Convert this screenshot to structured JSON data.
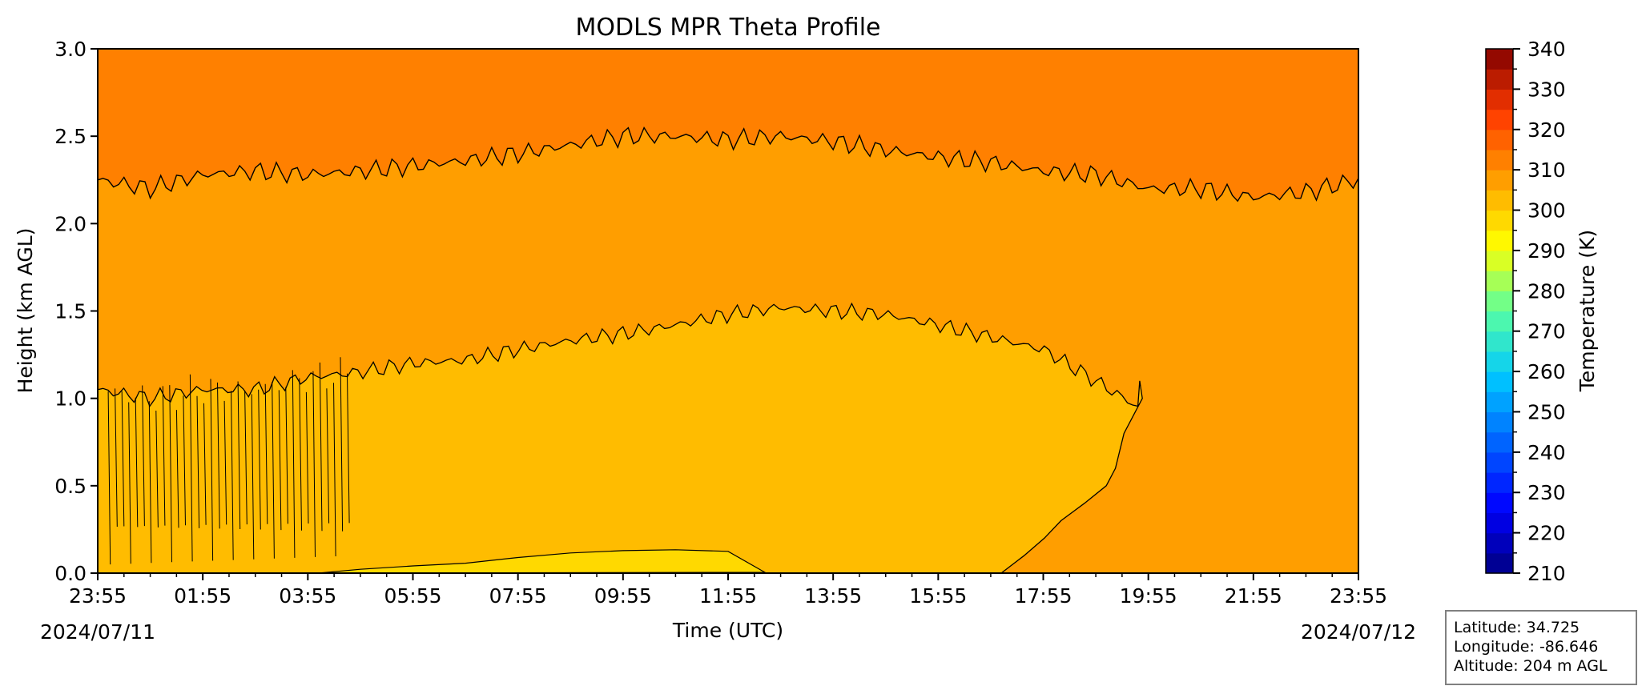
{
  "chart_data": {
    "type": "heatmap",
    "title": "MODLS MPR Theta Profile",
    "xlabel": "Time (UTC)",
    "ylabel": "Height (km AGL)",
    "x_tick_labels": [
      "23:55",
      "01:55",
      "03:55",
      "05:55",
      "07:55",
      "09:55",
      "11:55",
      "13:55",
      "15:55",
      "17:55",
      "19:55",
      "21:55",
      "23:55"
    ],
    "x_range_hours": [
      0,
      24
    ],
    "start_date_label": "2024/07/11",
    "end_date_label": "2024/07/12",
    "y_tick_labels": [
      "0.0",
      "0.5",
      "1.0",
      "1.5",
      "2.0",
      "2.5",
      "3.0"
    ],
    "ylim": [
      0.0,
      3.0
    ],
    "colorbar": {
      "label": "Temperature (K)",
      "range": [
        210,
        340
      ],
      "step": 5,
      "tick_labels": [
        "210",
        "220",
        "230",
        "240",
        "250",
        "260",
        "270",
        "280",
        "290",
        "300",
        "310",
        "320",
        "330",
        "340"
      ]
    },
    "contour_levels_K": [
      295,
      300,
      305,
      310
    ],
    "regions": [
      {
        "level_range_K": [
          310,
          315
        ],
        "description_position": "top"
      },
      {
        "level_range_K": [
          305,
          310
        ],
        "description_position": "middle band"
      },
      {
        "level_range_K": [
          300,
          305
        ],
        "description_position": "daytime dome"
      },
      {
        "level_range_K": [
          295,
          300
        ],
        "description_position": "near surface midday"
      }
    ],
    "boundary_310K_km": {
      "time_hours": [
        0,
        1,
        2,
        3,
        4,
        5,
        6,
        7,
        8,
        9,
        10,
        11,
        12,
        13,
        14,
        15,
        16,
        17,
        18,
        19,
        20,
        21,
        22,
        23,
        24
      ],
      "height_km": [
        2.25,
        2.2,
        2.28,
        2.3,
        2.28,
        2.3,
        2.33,
        2.36,
        2.4,
        2.45,
        2.5,
        2.5,
        2.48,
        2.5,
        2.47,
        2.42,
        2.38,
        2.35,
        2.3,
        2.28,
        2.2,
        2.2,
        2.15,
        2.18,
        2.25
      ]
    },
    "dome_top_305K_km": {
      "time_hours": [
        0,
        1,
        2,
        3,
        4,
        5,
        6,
        7,
        8,
        9,
        10,
        11,
        12,
        13,
        14,
        15,
        16,
        17,
        18,
        19,
        19.8
      ],
      "height_km": [
        1.05,
        1.0,
        1.05,
        1.05,
        1.12,
        1.15,
        1.2,
        1.22,
        1.28,
        1.33,
        1.37,
        1.42,
        1.48,
        1.52,
        1.5,
        1.48,
        1.42,
        1.35,
        1.28,
        1.1,
        0.95
      ]
    },
    "dome_right_edge_305K": {
      "height_km": [
        0.0,
        0.1,
        0.2,
        0.3,
        0.4,
        0.5,
        0.6,
        0.8,
        1.0,
        1.1
      ],
      "time_hours": [
        17.2,
        17.6,
        18.0,
        18.4,
        18.8,
        19.1,
        19.4,
        19.65,
        19.8,
        19.75
      ]
    },
    "surface_dome_300K": {
      "time_hours": [
        4.2,
        5,
        6,
        7,
        8,
        9,
        10,
        11,
        12,
        12.7
      ],
      "height_km": [
        0.0,
        0.02,
        0.04,
        0.06,
        0.09,
        0.11,
        0.13,
        0.14,
        0.12,
        0.0
      ]
    }
  },
  "info_box": {
    "latitude": "Latitude: 34.725",
    "longitude": "Longitude: -86.646",
    "altitude": "Altitude: 204 m AGL"
  }
}
